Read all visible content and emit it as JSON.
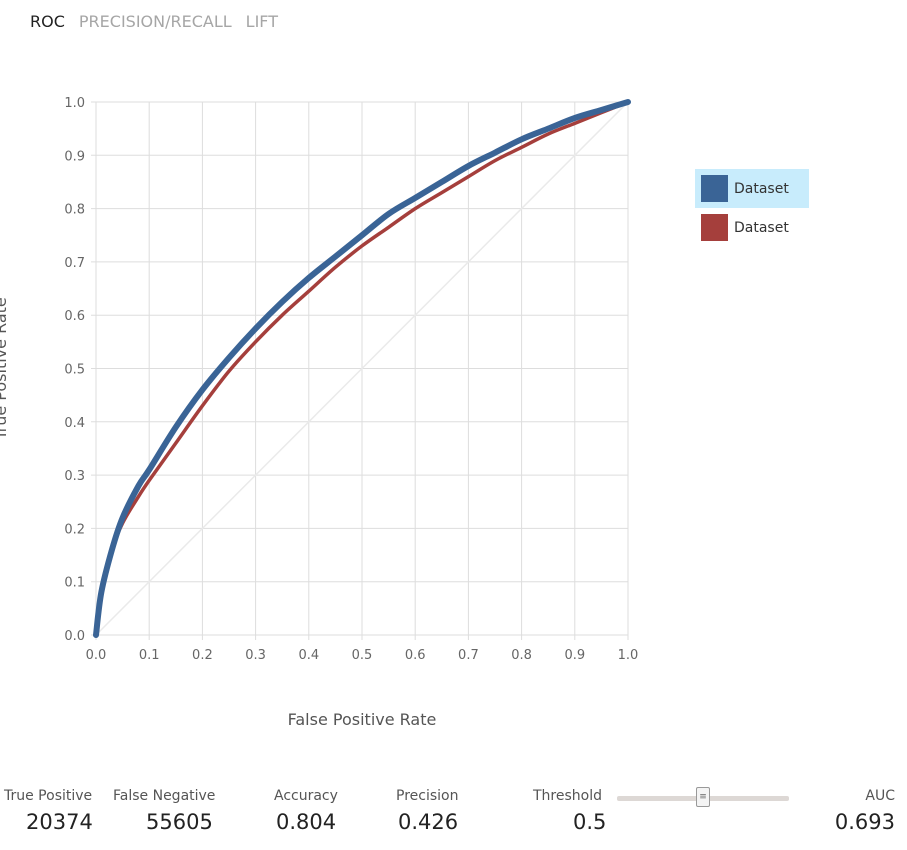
{
  "tabs": [
    {
      "label": "ROC",
      "active": true
    },
    {
      "label": "PRECISION/RECALL",
      "active": false
    },
    {
      "label": "LIFT",
      "active": false
    }
  ],
  "chart_data": {
    "type": "line",
    "title": "",
    "xlabel": "False Positive Rate",
    "ylabel": "True Positive Rate",
    "xlim": [
      0,
      1
    ],
    "ylim": [
      0,
      1
    ],
    "x_ticks": [
      "0.0",
      "0.1",
      "0.2",
      "0.3",
      "0.4",
      "0.5",
      "0.6",
      "0.7",
      "0.8",
      "0.9",
      "1.0"
    ],
    "y_ticks": [
      "0.0",
      "0.1",
      "0.2",
      "0.3",
      "0.4",
      "0.5",
      "0.6",
      "0.7",
      "0.8",
      "0.9",
      "1.0"
    ],
    "grid": true,
    "legend_position": "right",
    "diagonal_reference": true,
    "series": [
      {
        "name": "Dataset",
        "color": "#3a6496",
        "x": [
          0,
          0.01,
          0.03,
          0.05,
          0.08,
          0.1,
          0.15,
          0.2,
          0.25,
          0.3,
          0.35,
          0.4,
          0.45,
          0.5,
          0.55,
          0.6,
          0.65,
          0.7,
          0.75,
          0.8,
          0.85,
          0.9,
          0.95,
          1.0
        ],
        "y": [
          0,
          0.08,
          0.16,
          0.22,
          0.28,
          0.31,
          0.39,
          0.46,
          0.52,
          0.575,
          0.625,
          0.67,
          0.71,
          0.75,
          0.79,
          0.82,
          0.85,
          0.88,
          0.905,
          0.93,
          0.95,
          0.97,
          0.985,
          1.0
        ]
      },
      {
        "name": "Dataset",
        "color": "#a53f3c",
        "x": [
          0,
          0.01,
          0.03,
          0.05,
          0.08,
          0.1,
          0.15,
          0.2,
          0.25,
          0.3,
          0.35,
          0.4,
          0.45,
          0.5,
          0.55,
          0.6,
          0.65,
          0.7,
          0.75,
          0.8,
          0.85,
          0.9,
          0.95,
          1.0
        ],
        "y": [
          0,
          0.08,
          0.16,
          0.21,
          0.26,
          0.29,
          0.36,
          0.43,
          0.495,
          0.55,
          0.6,
          0.645,
          0.69,
          0.73,
          0.765,
          0.8,
          0.83,
          0.86,
          0.89,
          0.915,
          0.94,
          0.96,
          0.98,
          1.0
        ]
      }
    ]
  },
  "legend": [
    {
      "label": "Dataset",
      "color": "#3a6496",
      "highlighted": true
    },
    {
      "label": "Dataset",
      "color": "#a53f3c",
      "highlighted": false
    }
  ],
  "metrics": {
    "true_positive": {
      "label": "True Positive",
      "value": "20374"
    },
    "false_negative": {
      "label": "False Negative",
      "value": "55605"
    },
    "accuracy": {
      "label": "Accuracy",
      "value": "0.804"
    },
    "precision": {
      "label": "Precision",
      "value": "0.426"
    },
    "threshold": {
      "label": "Threshold",
      "value": "0.5",
      "slider_fraction": 0.5
    },
    "auc": {
      "label": "AUC",
      "value": "0.693"
    }
  },
  "colors": {
    "grid": "#dddddd",
    "diagonal": "#eaeaea",
    "legend_highlight": "#c8ecfc"
  }
}
